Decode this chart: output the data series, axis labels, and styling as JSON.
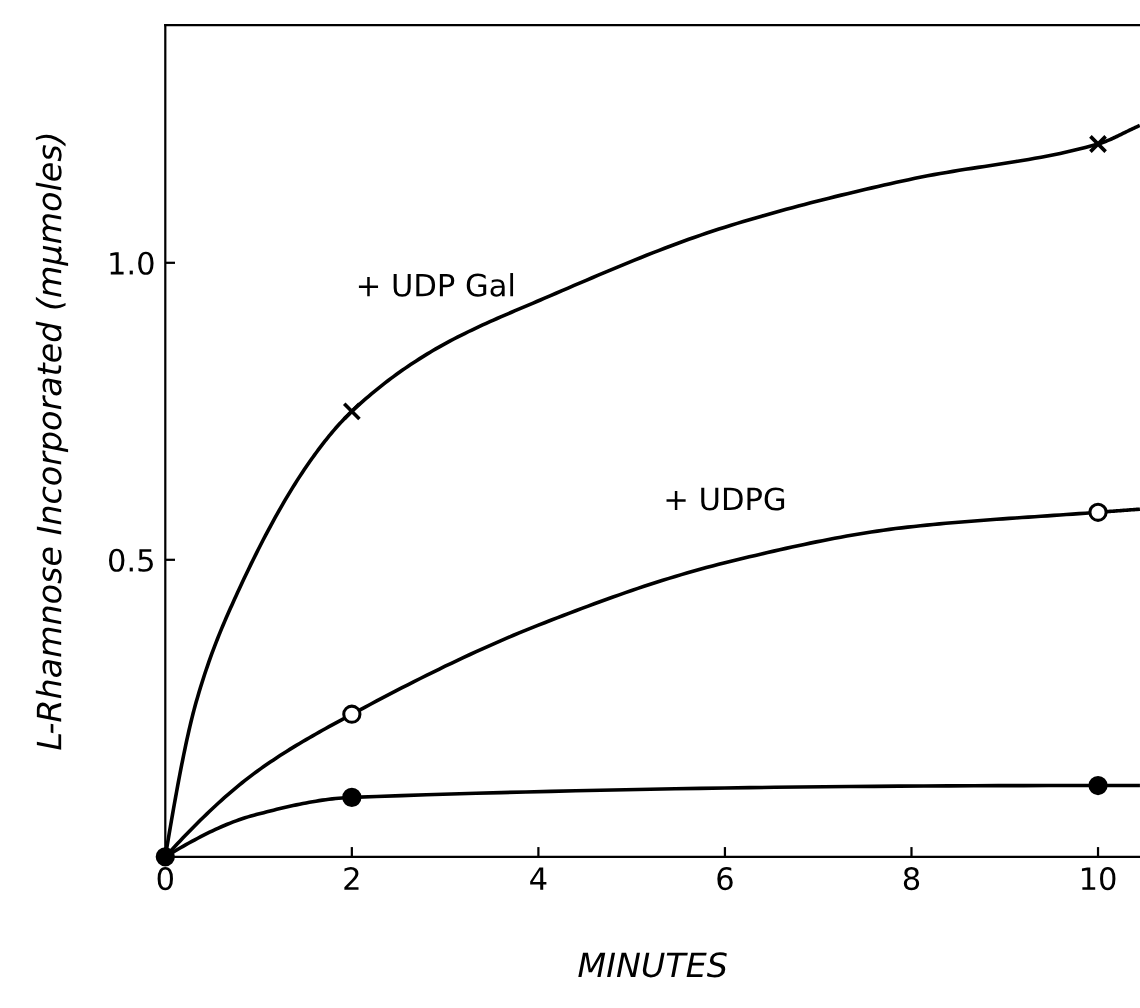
{
  "chart_data": {
    "type": "line",
    "xlabel": "MINUTES",
    "ylabel": "L-Rhamnose Incorporated (mμmoles)",
    "xlim": [
      0,
      10.45
    ],
    "ylim": [
      0,
      1.4
    ],
    "xticks": [
      0,
      2,
      4,
      6,
      8,
      10
    ],
    "yticks": [
      {
        "value": 0.5,
        "label": "0.5"
      },
      {
        "value": 1.0,
        "label": "1.0"
      }
    ],
    "grid": false,
    "series": [
      {
        "name": "+ UDP Gal",
        "color": "#000000",
        "marker": "none",
        "x": [
          0,
          0.33,
          0.79,
          1.57,
          2,
          2.9,
          4.06,
          6.0,
          7.97,
          10,
          10.43
        ],
        "values": [
          0,
          0.26,
          0.45,
          0.67,
          0.75,
          0.855,
          0.94,
          1.06,
          1.14,
          1.2,
          1.23
        ]
      },
      {
        "name": "+ UDPG",
        "color": "#000000",
        "marker": "none",
        "x": [
          0,
          0.95,
          2,
          4.0,
          6.0,
          7.96,
          10,
          10.43
        ],
        "values": [
          0,
          0.14,
          0.24,
          0.39,
          0.495,
          0.555,
          0.58,
          0.585
        ]
      },
      {
        "color": "#000000",
        "marker": "none",
        "x": [
          0,
          0.95,
          2,
          10,
          10.43
        ],
        "values": [
          0,
          0.07,
          0.1,
          0.12,
          0.12
        ]
      },
      {
        "type": "scatter",
        "color": "#000000",
        "marker": "cross",
        "x": [
          2,
          10
        ],
        "values": [
          0.75,
          1.2
        ]
      },
      {
        "type": "scatter",
        "color": "#ffffff",
        "marker": "circle",
        "x": [
          2,
          10
        ],
        "values": [
          0.24,
          0.58
        ]
      },
      {
        "type": "scatter",
        "color": "#000000",
        "marker": "circle",
        "x": [
          0,
          2,
          10
        ],
        "values": [
          0,
          0.1,
          0.12
        ]
      }
    ]
  }
}
